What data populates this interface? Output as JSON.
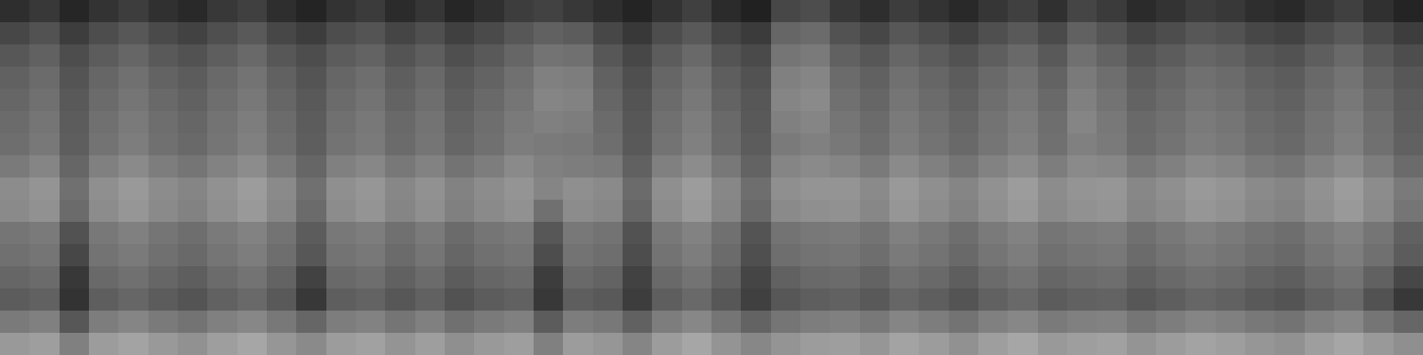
{
  "chart_data": {
    "type": "heatmap",
    "color": "gray",
    "tick_labels": false,
    "zlim": [
      0,
      100
    ],
    "cells": [
      [
        18,
        22,
        15,
        20,
        24,
        19,
        16,
        22,
        25,
        18,
        14,
        20,
        23,
        17,
        21,
        15,
        19,
        24,
        26,
        22,
        18,
        14,
        20,
        25,
        17,
        13,
        28,
        30,
        22,
        18,
        24,
        20,
        16,
        21,
        25,
        19,
        27,
        23,
        17,
        20,
        24,
        22,
        18,
        16,
        21,
        25,
        19,
        14
      ],
      [
        28,
        32,
        24,
        30,
        34,
        29,
        26,
        31,
        35,
        28,
        24,
        30,
        33,
        27,
        31,
        25,
        29,
        34,
        38,
        36,
        28,
        22,
        30,
        35,
        27,
        23,
        40,
        42,
        32,
        28,
        34,
        30,
        26,
        31,
        35,
        29,
        38,
        33,
        27,
        30,
        34,
        32,
        28,
        26,
        31,
        35,
        29,
        24
      ],
      [
        34,
        38,
        30,
        36,
        40,
        35,
        32,
        37,
        41,
        34,
        30,
        36,
        39,
        33,
        37,
        31,
        35,
        40,
        45,
        44,
        34,
        28,
        36,
        41,
        33,
        29,
        46,
        48,
        38,
        34,
        40,
        36,
        32,
        37,
        41,
        35,
        44,
        39,
        33,
        36,
        40,
        38,
        34,
        32,
        37,
        41,
        35,
        30
      ],
      [
        38,
        42,
        33,
        40,
        44,
        39,
        36,
        41,
        45,
        38,
        33,
        40,
        43,
        37,
        41,
        35,
        39,
        44,
        50,
        49,
        38,
        31,
        40,
        45,
        37,
        32,
        50,
        52,
        42,
        38,
        44,
        40,
        36,
        41,
        45,
        39,
        48,
        43,
        37,
        40,
        44,
        42,
        38,
        36,
        41,
        45,
        39,
        34
      ],
      [
        40,
        44,
        35,
        42,
        46,
        41,
        38,
        43,
        47,
        40,
        35,
        42,
        45,
        39,
        43,
        37,
        41,
        46,
        52,
        51,
        40,
        33,
        42,
        47,
        39,
        34,
        52,
        54,
        44,
        40,
        46,
        42,
        38,
        43,
        47,
        41,
        50,
        45,
        39,
        42,
        46,
        44,
        40,
        38,
        43,
        47,
        41,
        36
      ],
      [
        42,
        46,
        36,
        44,
        48,
        43,
        40,
        45,
        49,
        42,
        36,
        44,
        47,
        41,
        45,
        39,
        43,
        48,
        50,
        49,
        42,
        34,
        44,
        49,
        41,
        35,
        50,
        52,
        46,
        42,
        48,
        44,
        40,
        45,
        49,
        43,
        52,
        47,
        41,
        44,
        48,
        46,
        42,
        40,
        45,
        49,
        43,
        37
      ],
      [
        43,
        47,
        37,
        45,
        49,
        44,
        41,
        46,
        50,
        43,
        37,
        45,
        48,
        42,
        46,
        40,
        44,
        49,
        48,
        47,
        43,
        35,
        45,
        50,
        42,
        36,
        48,
        50,
        47,
        43,
        49,
        45,
        41,
        46,
        50,
        44,
        50,
        48,
        42,
        45,
        49,
        47,
        43,
        41,
        46,
        50,
        44,
        38
      ],
      [
        48,
        52,
        40,
        50,
        54,
        49,
        46,
        51,
        55,
        48,
        40,
        50,
        53,
        47,
        51,
        45,
        49,
        54,
        50,
        49,
        48,
        38,
        50,
        55,
        47,
        39,
        52,
        54,
        52,
        48,
        54,
        50,
        46,
        51,
        55,
        49,
        54,
        53,
        47,
        50,
        54,
        52,
        48,
        46,
        51,
        55,
        49,
        42
      ],
      [
        55,
        58,
        44,
        56,
        60,
        55,
        52,
        57,
        61,
        54,
        44,
        56,
        59,
        53,
        57,
        51,
        55,
        58,
        52,
        56,
        54,
        42,
        56,
        61,
        53,
        43,
        56,
        58,
        58,
        54,
        60,
        56,
        52,
        57,
        61,
        55,
        58,
        59,
        53,
        56,
        60,
        58,
        54,
        52,
        57,
        61,
        55,
        48
      ],
      [
        54,
        57,
        42,
        55,
        59,
        54,
        51,
        56,
        60,
        53,
        42,
        55,
        58,
        52,
        56,
        50,
        54,
        57,
        44,
        55,
        53,
        40,
        55,
        60,
        52,
        41,
        54,
        56,
        57,
        53,
        59,
        55,
        51,
        56,
        60,
        54,
        57,
        58,
        52,
        55,
        59,
        57,
        53,
        51,
        56,
        60,
        54,
        46
      ],
      [
        46,
        48,
        32,
        47,
        50,
        46,
        43,
        48,
        51,
        45,
        36,
        47,
        49,
        44,
        48,
        42,
        46,
        48,
        34,
        47,
        45,
        32,
        47,
        51,
        44,
        33,
        45,
        47,
        48,
        45,
        50,
        47,
        43,
        48,
        51,
        46,
        48,
        49,
        44,
        47,
        50,
        48,
        45,
        43,
        48,
        51,
        46,
        38
      ],
      [
        44,
        46,
        28,
        45,
        48,
        44,
        41,
        46,
        49,
        43,
        34,
        45,
        47,
        42,
        46,
        40,
        44,
        46,
        30,
        45,
        43,
        30,
        45,
        49,
        42,
        31,
        43,
        45,
        46,
        43,
        48,
        45,
        41,
        46,
        49,
        44,
        46,
        47,
        42,
        45,
        48,
        46,
        43,
        41,
        46,
        49,
        44,
        36
      ],
      [
        40,
        42,
        22,
        41,
        44,
        40,
        37,
        42,
        45,
        39,
        26,
        41,
        43,
        38,
        42,
        36,
        40,
        42,
        24,
        41,
        39,
        26,
        41,
        45,
        38,
        27,
        38,
        41,
        42,
        39,
        44,
        41,
        37,
        42,
        45,
        40,
        42,
        43,
        38,
        41,
        44,
        42,
        39,
        37,
        42,
        45,
        38,
        28
      ],
      [
        36,
        38,
        20,
        37,
        40,
        36,
        33,
        38,
        41,
        35,
        22,
        37,
        39,
        34,
        38,
        32,
        36,
        38,
        22,
        37,
        35,
        24,
        37,
        41,
        34,
        25,
        34,
        37,
        38,
        35,
        40,
        37,
        33,
        38,
        41,
        36,
        38,
        39,
        34,
        37,
        40,
        38,
        35,
        33,
        38,
        41,
        32,
        22
      ],
      [
        48,
        50,
        34,
        49,
        52,
        48,
        45,
        50,
        53,
        47,
        40,
        49,
        51,
        46,
        50,
        44,
        48,
        50,
        36,
        49,
        47,
        38,
        49,
        53,
        46,
        39,
        46,
        49,
        50,
        47,
        52,
        49,
        45,
        50,
        53,
        48,
        50,
        51,
        46,
        49,
        52,
        50,
        47,
        45,
        50,
        53,
        46,
        40
      ],
      [
        60,
        62,
        50,
        61,
        64,
        60,
        57,
        62,
        65,
        59,
        54,
        61,
        63,
        58,
        62,
        56,
        60,
        62,
        50,
        61,
        59,
        52,
        61,
        65,
        58,
        53,
        58,
        61,
        62,
        59,
        64,
        61,
        57,
        62,
        65,
        60,
        62,
        63,
        58,
        61,
        64,
        62,
        59,
        57,
        62,
        65,
        60,
        56
      ]
    ]
  }
}
